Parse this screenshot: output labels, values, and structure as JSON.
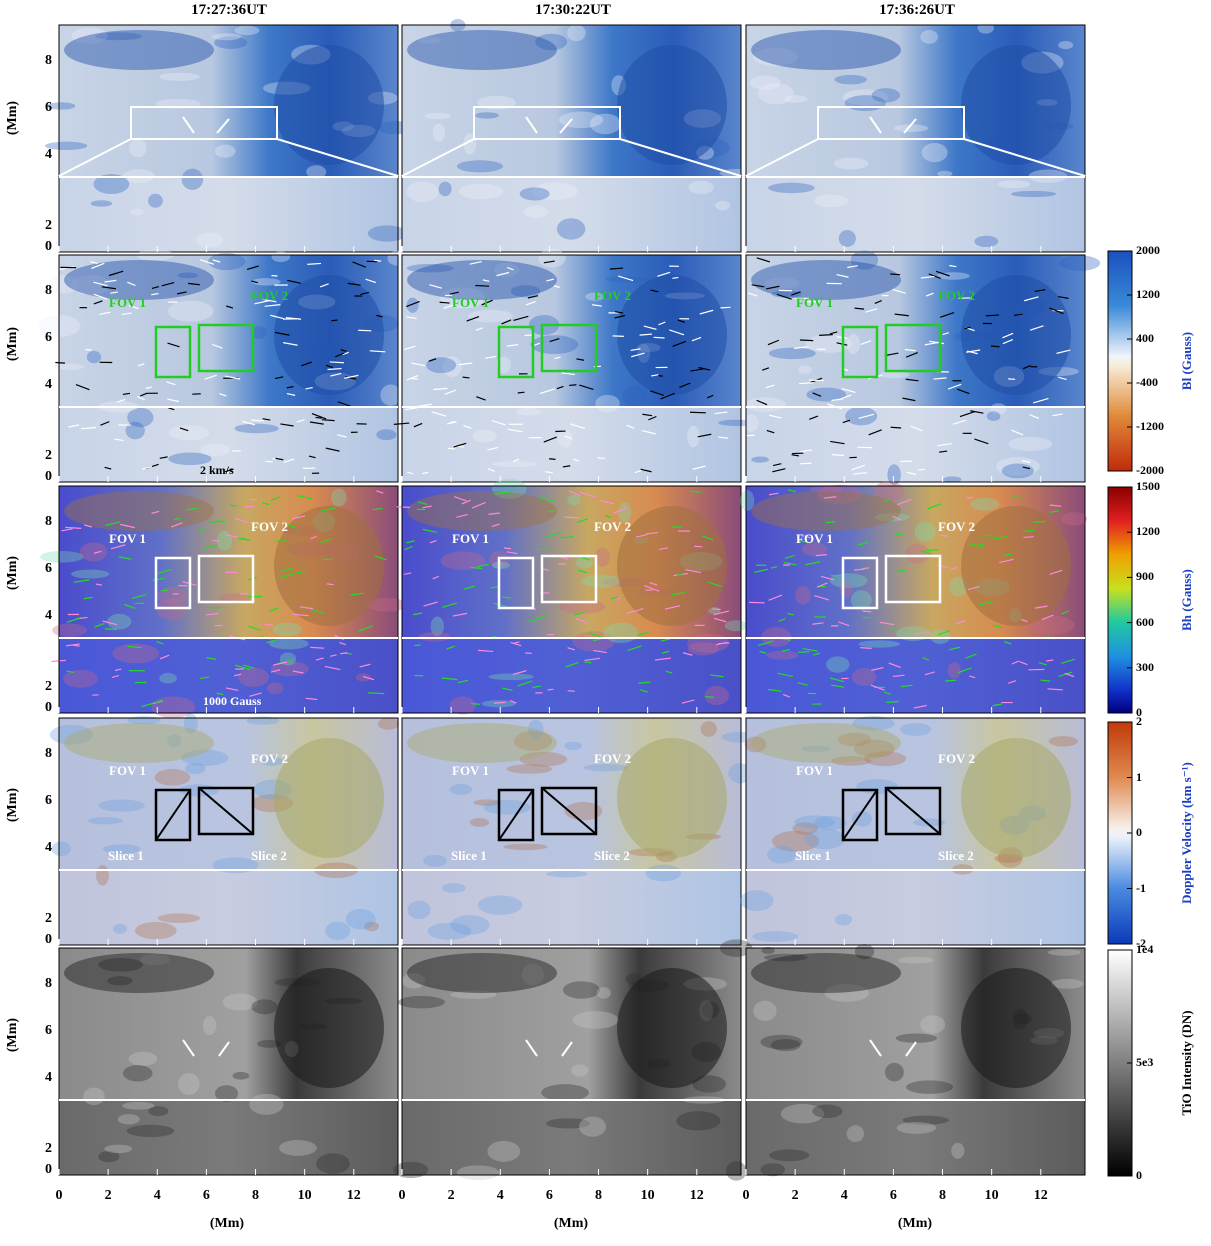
{
  "times": [
    "17:27:36UT",
    "17:30:22UT",
    "17:36:26UT"
  ],
  "y_axis_label": "(Mm)",
  "x_axis_label": "(Mm)",
  "y_ticks_top": [
    "8",
    "6",
    "4"
  ],
  "y_ticks_bottom": [
    "2",
    "0"
  ],
  "x_ticks": [
    "0",
    "2",
    "4",
    "6",
    "8",
    "10",
    "12"
  ],
  "rows": [
    {
      "key": "row1",
      "kind": "bl_plain"
    },
    {
      "key": "row2",
      "kind": "bl_arrows",
      "fov1": "FOV 1",
      "fov2": "FOV 2",
      "scale_label": "2 km/s"
    },
    {
      "key": "row3",
      "kind": "bh",
      "fov1": "FOV 1",
      "fov2": "FOV 2",
      "scale_label": "1000 Gauss"
    },
    {
      "key": "row4",
      "kind": "doppler",
      "fov1": "FOV 1",
      "fov2": "FOV 2",
      "slice1": "Slice 1",
      "slice2": "Slice 2"
    },
    {
      "key": "row5",
      "kind": "tio"
    }
  ],
  "colorbars": [
    {
      "label": "Bl (Gauss)",
      "ticks": [
        "2000",
        "1200",
        "400",
        "-400",
        "-1200",
        "-2000"
      ],
      "label_color": "#1a3ec2"
    },
    {
      "label": "Bh (Gauss)",
      "ticks": [
        "1500",
        "1200",
        "900",
        "600",
        "300",
        "0"
      ],
      "label_color": "#1a3ec2"
    },
    {
      "label": "Doppler Velocity (km s⁻¹)",
      "ticks": [
        "2",
        "1",
        "0",
        "-1",
        "-2"
      ],
      "label_color": "#1a3ec2"
    },
    {
      "label": "TiO Intensity (DN)",
      "ticks": [
        "1e4",
        "5e3",
        "0"
      ],
      "label_color": "#000000"
    }
  ],
  "colors": {
    "fov_green": "#22cc22",
    "box_white": "#ffffff",
    "box_black": "#000000",
    "arrow_pink": "#ff88dd",
    "arrow_green": "#22dd22"
  }
}
